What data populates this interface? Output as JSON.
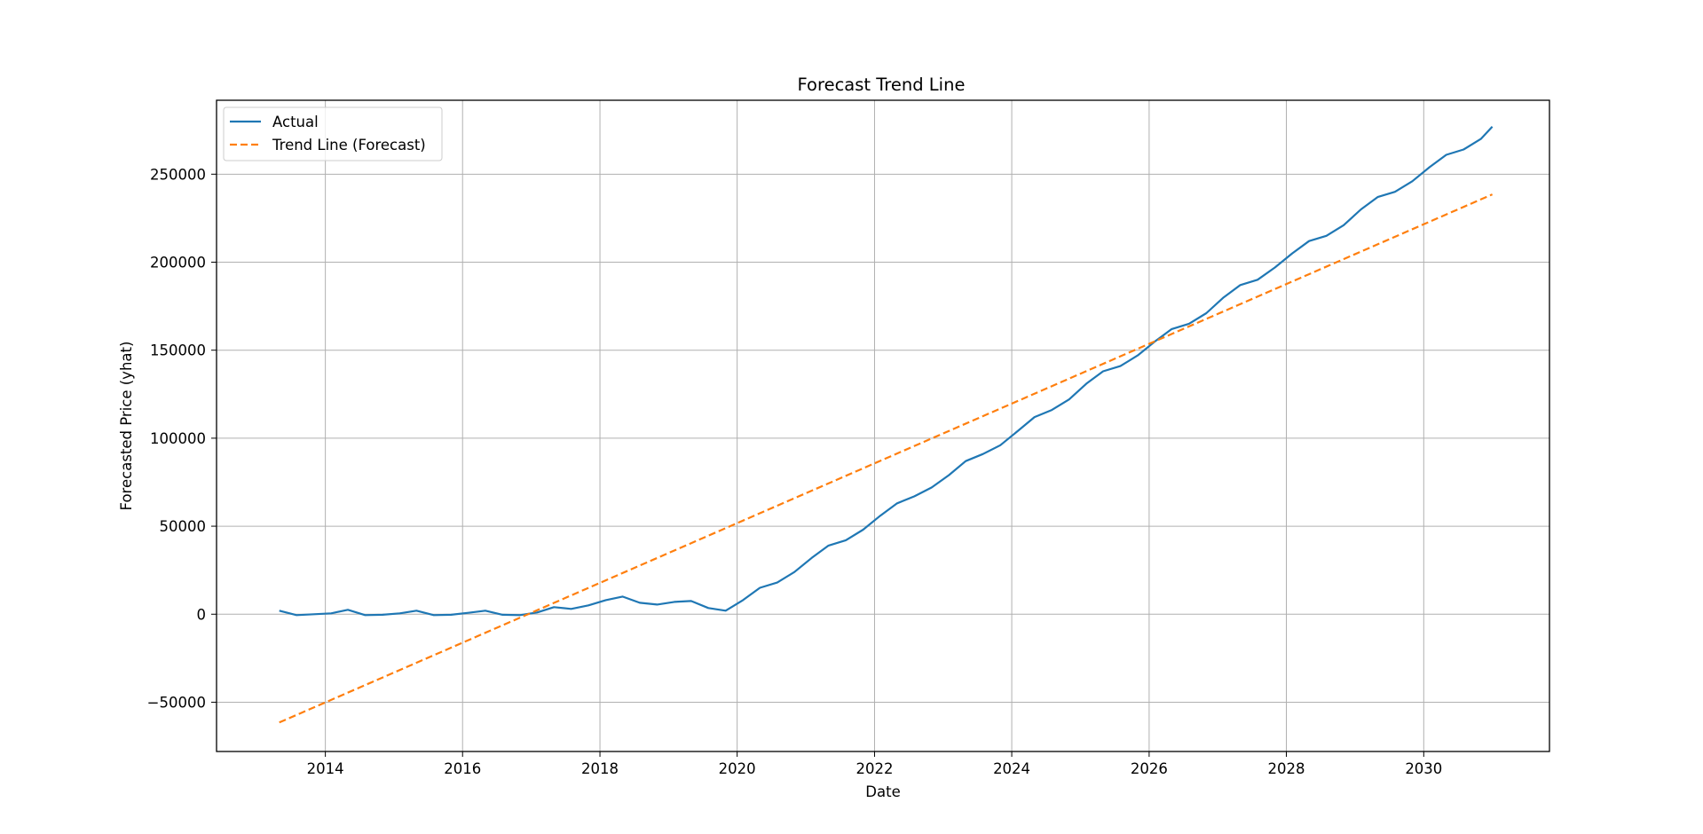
{
  "chart_data": {
    "type": "line",
    "title": "Forecast Trend Line",
    "xlabel": "Date",
    "ylabel": "Forecasted Price (yhat)",
    "xlim": [
      "2012-06-01",
      "2031-11-01"
    ],
    "ylim": [
      -78000,
      292000
    ],
    "x_ticks": [
      "2014",
      "2016",
      "2018",
      "2020",
      "2022",
      "2024",
      "2026",
      "2028",
      "2030"
    ],
    "y_ticks": [
      -50000,
      0,
      50000,
      100000,
      150000,
      200000,
      250000
    ],
    "grid": true,
    "legend_position": "top-left",
    "series": [
      {
        "name": "Actual",
        "color": "#1f77b4",
        "style": "solid",
        "x": [
          "2013-05-01",
          "2013-08-01",
          "2013-11-01",
          "2014-02-01",
          "2014-05-01",
          "2014-08-01",
          "2014-11-01",
          "2015-02-01",
          "2015-05-01",
          "2015-08-01",
          "2015-11-01",
          "2016-02-01",
          "2016-05-01",
          "2016-08-01",
          "2016-11-01",
          "2017-02-01",
          "2017-05-01",
          "2017-08-01",
          "2017-11-01",
          "2018-02-01",
          "2018-05-01",
          "2018-08-01",
          "2018-11-01",
          "2019-02-01",
          "2019-05-01",
          "2019-08-01",
          "2019-11-01",
          "2020-02-01",
          "2020-05-01",
          "2020-08-01",
          "2020-11-01",
          "2021-02-01",
          "2021-05-01",
          "2021-08-01",
          "2021-11-01",
          "2022-02-01",
          "2022-05-01",
          "2022-08-01",
          "2022-11-01",
          "2023-02-01",
          "2023-05-01",
          "2023-08-01",
          "2023-11-01",
          "2024-02-01",
          "2024-05-01",
          "2024-08-01",
          "2024-11-01",
          "2025-02-01",
          "2025-05-01",
          "2025-08-01",
          "2025-11-01",
          "2026-02-01",
          "2026-05-01",
          "2026-08-01",
          "2026-11-01",
          "2027-02-01",
          "2027-05-01",
          "2027-08-01",
          "2027-11-01",
          "2028-02-01",
          "2028-05-01",
          "2028-08-01",
          "2028-11-01",
          "2029-02-01",
          "2029-05-01",
          "2029-08-01",
          "2029-11-01",
          "2030-02-01",
          "2030-05-01",
          "2030-08-01",
          "2030-11-01",
          "2031-01-01"
        ],
        "values": [
          2000,
          -500,
          0,
          500,
          2500,
          -500,
          -300,
          500,
          2000,
          -500,
          -300,
          800,
          2000,
          -300,
          -500,
          1000,
          4000,
          3000,
          5000,
          8000,
          10000,
          6500,
          5500,
          7000,
          7500,
          3500,
          2000,
          8000,
          15000,
          18000,
          24000,
          32000,
          39000,
          42000,
          48000,
          56000,
          63000,
          67000,
          72000,
          79000,
          87000,
          91000,
          96000,
          104000,
          112000,
          116000,
          122000,
          131000,
          138000,
          141000,
          147000,
          155000,
          162000,
          165000,
          171000,
          180000,
          187000,
          190000,
          197000,
          205000,
          212000,
          215000,
          221000,
          230000,
          237000,
          240000,
          246000,
          254000,
          261000,
          264000,
          270000,
          277000
        ]
      },
      {
        "name": "Trend Line (Forecast)",
        "color": "#ff7f0e",
        "style": "dashed",
        "x": [
          "2013-05-01",
          "2031-01-01"
        ],
        "values": [
          -61500,
          238500
        ]
      }
    ]
  }
}
